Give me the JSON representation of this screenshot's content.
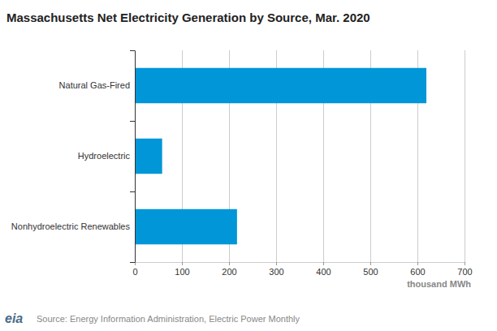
{
  "chart_data": {
    "type": "bar",
    "orientation": "horizontal",
    "title": "Massachusetts Net Electricity Generation by Source, Mar. 2020",
    "categories": [
      "Natural Gas-Fired",
      "Hydroelectric",
      "Nonhydroelectric Renewables"
    ],
    "values": [
      619,
      58,
      217
    ],
    "color": "#0096d7",
    "xlim": [
      0,
      700
    ],
    "xticks": [
      0,
      100,
      200,
      300,
      400,
      500,
      600,
      700
    ],
    "x_label": "thousand MWh",
    "grid": true,
    "source": "Source: Energy Information Administration, Electric Power Monthly",
    "logo": "eia"
  }
}
